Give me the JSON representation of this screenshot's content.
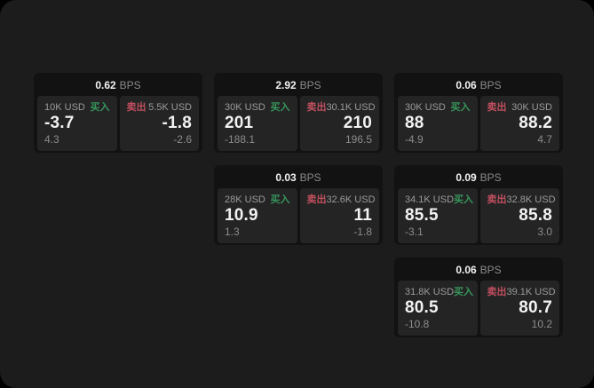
{
  "page": {
    "background_color": "#000000",
    "panel_color": "#1c1c1c"
  },
  "colors": {
    "buy_green": "#36965c",
    "sell_red": "#c24f5f",
    "card_background": "#121212",
    "tile_background": "#242424",
    "value_white": "#f2f2f2",
    "label_gray": "#9b9b9b"
  },
  "labels": {
    "buy": "买入",
    "sell": "卖出",
    "bps_unit": "BPS"
  },
  "cards": [
    {
      "bps": "0.62",
      "bps_unit": "BPS",
      "buy": {
        "amount": "10K USD",
        "side_label": "买入",
        "value": "-3.7",
        "sub_value": "4.3"
      },
      "sell": {
        "side_label": "卖出",
        "amount": "5.5K USD",
        "value": "-1.8",
        "sub_value": "-2.6"
      }
    },
    {
      "bps": "2.92",
      "bps_unit": "BPS",
      "buy": {
        "amount": "30K USD",
        "side_label": "买入",
        "value": "201",
        "sub_value": "-188.1"
      },
      "sell": {
        "side_label": "卖出",
        "amount": "30.1K USD",
        "value": "210",
        "sub_value": "196.5"
      }
    },
    {
      "bps": "0.06",
      "bps_unit": "BPS",
      "buy": {
        "amount": "30K USD",
        "side_label": "买入",
        "value": "88",
        "sub_value": "-4.9"
      },
      "sell": {
        "side_label": "卖出",
        "amount": "30K USD",
        "value": "88.2",
        "sub_value": "4.7"
      }
    },
    {
      "bps": "0.03",
      "bps_unit": "BPS",
      "buy": {
        "amount": "28K USD",
        "side_label": "买入",
        "value": "10.9",
        "sub_value": "1.3"
      },
      "sell": {
        "side_label": "卖出",
        "amount": "32.6K USD",
        "value": "11",
        "sub_value": "-1.8"
      }
    },
    {
      "bps": "0.09",
      "bps_unit": "BPS",
      "buy": {
        "amount": "34.1K USD",
        "side_label": "买入",
        "value": "85.5",
        "sub_value": "-3.1"
      },
      "sell": {
        "side_label": "卖出",
        "amount": "32.8K USD",
        "value": "85.8",
        "sub_value": "3.0"
      }
    },
    {
      "bps": "0.06",
      "bps_unit": "BPS",
      "buy": {
        "amount": "31.8K USD",
        "side_label": "买入",
        "value": "80.5",
        "sub_value": "-10.8"
      },
      "sell": {
        "side_label": "卖出",
        "amount": "39.1K USD",
        "value": "80.7",
        "sub_value": "10.2"
      }
    }
  ]
}
